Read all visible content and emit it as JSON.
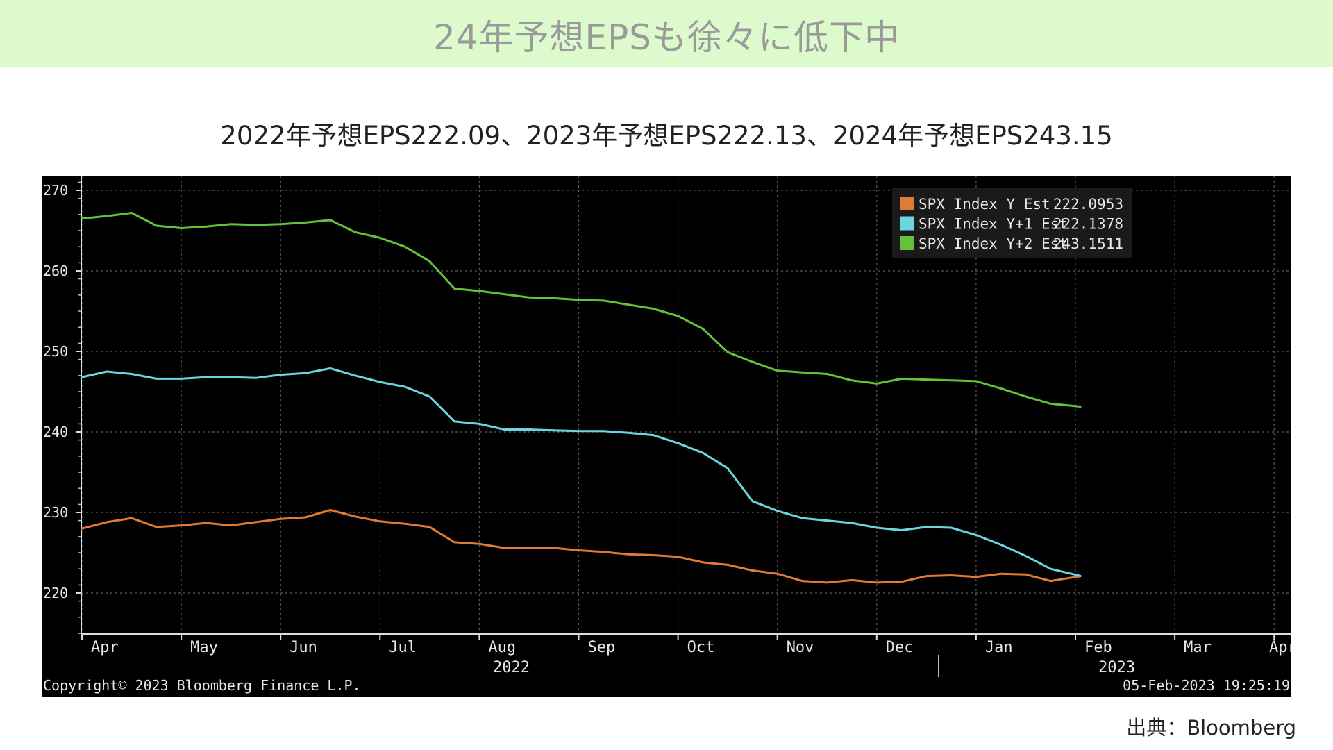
{
  "header": {
    "title": "24年予想EPSも徐々に低下中",
    "band_color": "#dcfacb"
  },
  "subtitle": "2022年予想EPS222.09、2023年予想EPS222.13、2024年予想EPS243.15",
  "source": "出典：Bloomberg",
  "chart_data": {
    "type": "line",
    "title": "",
    "xlabel": "",
    "ylabel": "",
    "ylim": [
      215,
      272
    ],
    "yticks": [
      220,
      230,
      240,
      250,
      260,
      270
    ],
    "grid": true,
    "background": "#000000",
    "month_labels": [
      "Apr",
      "May",
      "Jun",
      "Jul",
      "Aug",
      "Sep",
      "Oct",
      "Nov",
      "Dec",
      "Jan",
      "Feb",
      "Mar",
      "Apr"
    ],
    "year_labels": [
      "2022",
      "2023"
    ],
    "legend_position": "top-right",
    "copyright": "Copyright© 2023 Bloomberg Finance L.P.",
    "timestamp": "05-Feb-2023 19:25:19",
    "x": [
      0,
      0.25,
      0.5,
      0.75,
      1,
      1.25,
      1.5,
      1.75,
      2,
      2.25,
      2.5,
      2.75,
      3,
      3.25,
      3.5,
      3.75,
      4,
      4.25,
      4.5,
      4.75,
      5,
      5.25,
      5.5,
      5.75,
      6,
      6.25,
      6.5,
      6.75,
      7,
      7.25,
      7.5,
      7.75,
      8,
      8.25,
      8.5,
      8.75,
      9,
      9.25,
      9.5,
      9.75,
      10.05
    ],
    "series": [
      {
        "name": "SPX Index Y Est",
        "last_value": "222.0953",
        "color": "#e07a34",
        "values": [
          228.0,
          228.8,
          229.3,
          228.2,
          228.4,
          228.7,
          228.4,
          228.8,
          229.2,
          229.4,
          230.3,
          229.5,
          228.9,
          228.6,
          228.2,
          226.3,
          226.1,
          225.6,
          225.6,
          225.6,
          225.3,
          225.1,
          224.8,
          224.7,
          224.5,
          223.8,
          223.5,
          222.8,
          222.4,
          221.5,
          221.3,
          221.6,
          221.3,
          221.4,
          222.1,
          222.2,
          222.0,
          222.4,
          222.3,
          221.5,
          222.09
        ]
      },
      {
        "name": "SPX Index Y+1 Est",
        "last_value": "222.1378",
        "color": "#6cd6e0",
        "values": [
          246.8,
          247.5,
          247.2,
          246.6,
          246.6,
          246.8,
          246.8,
          246.7,
          247.1,
          247.3,
          247.9,
          247.0,
          246.2,
          245.6,
          244.4,
          241.3,
          241.0,
          240.3,
          240.3,
          240.2,
          240.1,
          240.1,
          239.9,
          239.6,
          238.6,
          237.4,
          235.5,
          231.4,
          230.2,
          229.3,
          229.0,
          228.7,
          228.1,
          227.8,
          228.2,
          228.1,
          227.2,
          226.0,
          224.6,
          223.0,
          222.13
        ]
      },
      {
        "name": "SPX Index Y+2 Est",
        "last_value": "243.1511",
        "color": "#63c23a",
        "values": [
          266.5,
          266.8,
          267.2,
          265.6,
          265.3,
          265.5,
          265.8,
          265.7,
          265.8,
          266.0,
          266.3,
          264.8,
          264.1,
          263.0,
          261.2,
          257.8,
          257.5,
          257.1,
          256.7,
          256.6,
          256.4,
          256.3,
          255.8,
          255.3,
          254.4,
          252.8,
          249.9,
          248.7,
          247.6,
          247.4,
          247.2,
          246.4,
          246.0,
          246.6,
          246.5,
          246.4,
          246.3,
          245.4,
          244.4,
          243.5,
          243.15
        ]
      }
    ]
  }
}
